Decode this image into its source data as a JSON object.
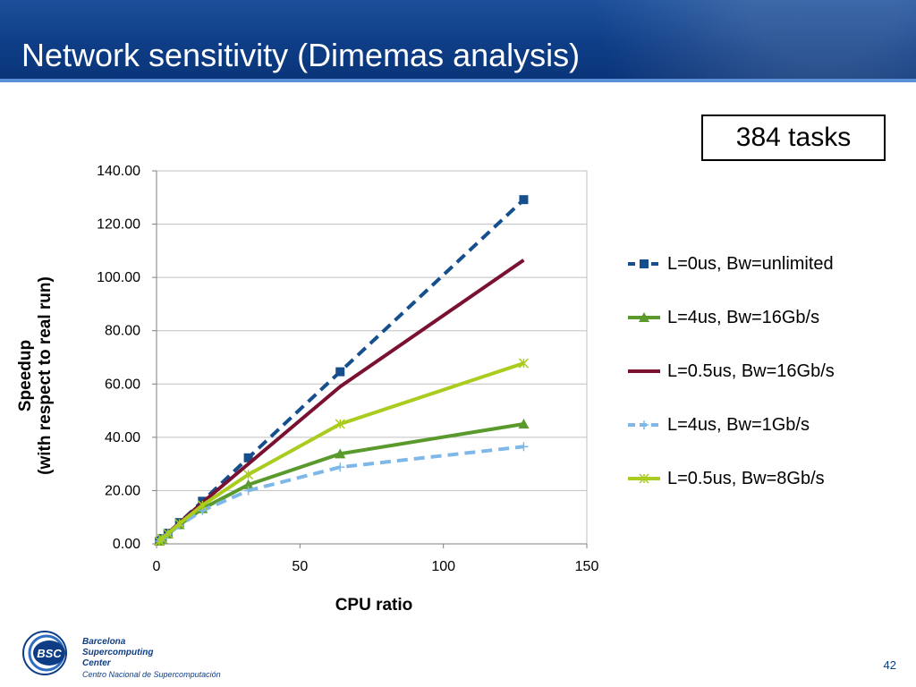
{
  "slide": {
    "title": "Network sensitivity (Dimemas analysis)",
    "tasks_label": "384 tasks",
    "page_number": "42"
  },
  "logo": {
    "badge": "BSC",
    "line1": "Barcelona",
    "line2": "Supercomputing",
    "line3": "Center",
    "line4": "Centro Nacional de Supercomputación"
  },
  "chart_data": {
    "type": "line",
    "xlabel": "CPU ratio",
    "ylabel_line1": "Speedup",
    "ylabel_line2": "(with respect to real run)",
    "xlim": [
      0,
      150
    ],
    "ylim": [
      0,
      140
    ],
    "x_ticks": [
      "0",
      "50",
      "100",
      "150"
    ],
    "y_ticks": [
      "0.00",
      "20.00",
      "40.00",
      "60.00",
      "80.00",
      "100.00",
      "120.00",
      "140.00"
    ],
    "grid": "horizontal",
    "legend_position": "right",
    "series": [
      {
        "name": "L=0us, Bw=unlimited",
        "color": "#154f8e",
        "dash": "dashed",
        "marker": "square",
        "x": [
          1,
          2,
          4,
          8,
          16,
          32,
          64,
          128
        ],
        "y": [
          1.0,
          2.0,
          4.0,
          8.0,
          16.0,
          32.3,
          64.6,
          129.2
        ]
      },
      {
        "name": "L=4us, Bw=16Gb/s",
        "color": "#5a9a2c",
        "dash": "solid",
        "marker": "triangle",
        "x": [
          1,
          2,
          4,
          8,
          16,
          32,
          64,
          128
        ],
        "y": [
          1.0,
          1.9,
          3.7,
          7.2,
          13.2,
          22.2,
          33.8,
          45.0
        ]
      },
      {
        "name": "L=0.5us, Bw=16Gb/s",
        "color": "#7a1130",
        "dash": "solid",
        "marker": "none",
        "x": [
          1,
          2,
          4,
          8,
          16,
          32,
          64,
          128
        ],
        "y": [
          1.0,
          2.0,
          4.0,
          7.9,
          15.5,
          30.0,
          59.0,
          106.5
        ]
      },
      {
        "name": "L=4us, Bw=1Gb/s",
        "color": "#7fb8e8",
        "dash": "dashed",
        "marker": "plus",
        "x": [
          1,
          2,
          4,
          8,
          16,
          32,
          64,
          128
        ],
        "y": [
          1.0,
          1.9,
          3.6,
          7.0,
          12.5,
          20.0,
          28.8,
          36.5
        ]
      },
      {
        "name": "L=0.5us, Bw=8Gb/s",
        "color": "#a9cc1f",
        "dash": "solid",
        "marker": "star",
        "x": [
          1,
          2,
          4,
          8,
          16,
          32,
          64,
          128
        ],
        "y": [
          1.0,
          2.0,
          3.9,
          7.6,
          14.5,
          26.0,
          45.0,
          67.8
        ]
      }
    ]
  }
}
